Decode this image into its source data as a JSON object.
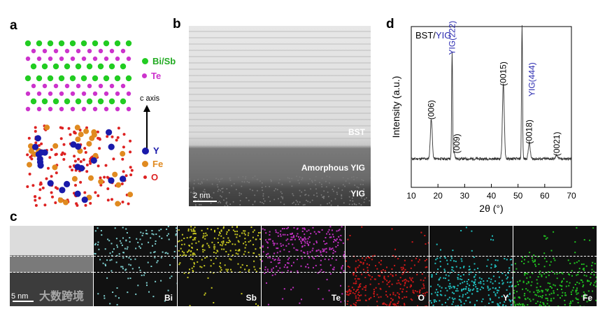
{
  "labels": {
    "a": "a",
    "b": "b",
    "c": "c",
    "d": "d"
  },
  "panel_a": {
    "legend": [
      {
        "label": "Bi/Sb",
        "color": "#22cc22"
      },
      {
        "label": "Te",
        "color": "#cc33cc"
      },
      {
        "label": "Y",
        "color": "#1a1aaa"
      },
      {
        "label": "Fe",
        "color": "#e08a20"
      },
      {
        "label": "O",
        "color": "#dd2222"
      }
    ],
    "axis_label": "c axis"
  },
  "panel_b": {
    "labels": [
      "BST",
      "Amorphous YIG",
      "YIG"
    ],
    "scalebar": "2 nm"
  },
  "panel_c": {
    "tiles": [
      {
        "label": "",
        "color": "#8a8a8a"
      },
      {
        "label": "Bi",
        "color": "#7fd0d0"
      },
      {
        "label": "Sb",
        "color": "#c8c820"
      },
      {
        "label": "Te",
        "color": "#c030c0"
      },
      {
        "label": "O",
        "color": "#d01818"
      },
      {
        "label": "Y",
        "color": "#20c0c0"
      },
      {
        "label": "Fe",
        "color": "#20c020"
      }
    ],
    "scalebar": "5 nm",
    "watermark": "大数跨境"
  },
  "chart_data": {
    "type": "line",
    "title_prefix": "BST/",
    "title_highlight": "YIG",
    "xlabel": "2θ (°)",
    "ylabel": "Intensity (a.u.)",
    "xlim": [
      10,
      70
    ],
    "xticks": [
      10,
      20,
      30,
      40,
      50,
      60,
      70
    ],
    "peaks": [
      {
        "x": 17.5,
        "h": 0.3,
        "label": "(006)",
        "color": "#000000"
      },
      {
        "x": 26.0,
        "h": 0.05,
        "label": "(009)",
        "color": "#000000"
      },
      {
        "x": 25.3,
        "h": 0.78,
        "label": "YIG(222)",
        "color": "#2a2ab0"
      },
      {
        "x": 44.5,
        "h": 0.55,
        "label": "(0015)",
        "color": "#000000"
      },
      {
        "x": 51.5,
        "h": 1.0,
        "label": "YIG(444)",
        "color": "#2a2ab0"
      },
      {
        "x": 54.2,
        "h": 0.12,
        "label": "(0018)",
        "color": "#000000"
      },
      {
        "x": 64.5,
        "h": 0.03,
        "label": "(0021)",
        "color": "#000000"
      }
    ]
  }
}
